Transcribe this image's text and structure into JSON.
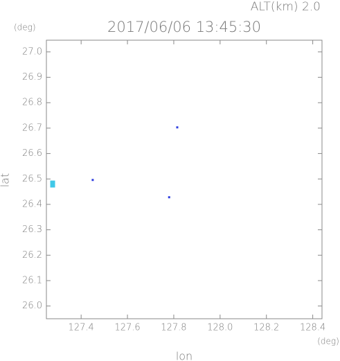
{
  "chart_data": {
    "type": "scatter",
    "title": "2017/06/06 13:45:30",
    "subtitle": "ALT(km) 2.0",
    "y_unit": "(deg)",
    "x_unit": "(deg)",
    "xlabel": "lon",
    "ylabel": "lat",
    "x": [
      127.277,
      127.45,
      127.815,
      127.78
    ],
    "y": [
      26.48,
      26.496,
      26.703,
      26.428
    ],
    "colors": [
      "#40c8e8",
      "#3040e0",
      "#3040e0",
      "#3040e0"
    ],
    "xlim": [
      127.25,
      128.44
    ],
    "ylim": [
      25.95,
      27.046
    ],
    "xticks": [
      127.4,
      127.6,
      127.8,
      {
        "value": 128,
        "label": "128.0"
      },
      128.2,
      128.4
    ],
    "yticks": [
      {
        "value": 26,
        "label": "26.0"
      },
      26.1,
      26.2,
      26.3,
      26.4,
      26.5,
      26.6,
      26.7,
      26.8,
      26.9,
      {
        "value": 27,
        "label": "27.0"
      }
    ]
  }
}
